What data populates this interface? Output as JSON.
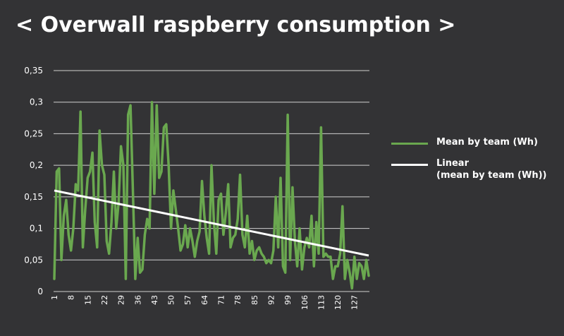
{
  "chart_data": {
    "type": "line",
    "title": "< Overwall raspberry consumption >",
    "xlabel": "",
    "ylabel": "",
    "ylim": [
      0,
      0.35
    ],
    "y_ticks": [
      "0",
      "0,05",
      "0,1",
      "0,15",
      "0,2",
      "0,25",
      "0,3",
      "0,35"
    ],
    "x_ticks": [
      "1",
      "8",
      "15",
      "22",
      "29",
      "36",
      "43",
      "50",
      "57",
      "64",
      "71",
      "78",
      "85",
      "92",
      "99",
      "106",
      "113",
      "120",
      "127"
    ],
    "xlim": [
      1,
      133
    ],
    "grid": "horizontal",
    "legend_position": "right",
    "series": [
      {
        "name": "Mean by team (Wh)",
        "color": "#6aa84f",
        "x": [
          1,
          2,
          3,
          4,
          5,
          6,
          7,
          8,
          9,
          10,
          11,
          12,
          13,
          14,
          15,
          16,
          17,
          18,
          19,
          20,
          21,
          22,
          23,
          24,
          25,
          26,
          27,
          28,
          29,
          30,
          31,
          32,
          33,
          34,
          35,
          36,
          37,
          38,
          39,
          40,
          41,
          42,
          43,
          44,
          45,
          46,
          47,
          48,
          49,
          50,
          51,
          52,
          53,
          54,
          55,
          56,
          57,
          58,
          59,
          60,
          61,
          62,
          63,
          64,
          65,
          66,
          67,
          68,
          69,
          70,
          71,
          72,
          73,
          74,
          75,
          76,
          77,
          78,
          79,
          80,
          81,
          82,
          83,
          84,
          85,
          86,
          87,
          88,
          89,
          90,
          91,
          92,
          93,
          94,
          95,
          96,
          97,
          98,
          99,
          100,
          101,
          102,
          103,
          104,
          105,
          106,
          107,
          108,
          109,
          110,
          111,
          112,
          113,
          114,
          115,
          116,
          117,
          118,
          119,
          120,
          121,
          122,
          123,
          124,
          125,
          126,
          127,
          128,
          129,
          130,
          131,
          132,
          133
        ],
        "values": [
          0.02,
          0.19,
          0.195,
          0.05,
          0.12,
          0.145,
          0.09,
          0.065,
          0.1,
          0.17,
          0.16,
          0.285,
          0.07,
          0.13,
          0.18,
          0.19,
          0.22,
          0.11,
          0.07,
          0.255,
          0.2,
          0.185,
          0.08,
          0.06,
          0.11,
          0.19,
          0.1,
          0.14,
          0.23,
          0.2,
          0.02,
          0.28,
          0.295,
          0.16,
          0.02,
          0.085,
          0.03,
          0.035,
          0.09,
          0.115,
          0.1,
          0.3,
          0.155,
          0.295,
          0.18,
          0.19,
          0.26,
          0.265,
          0.2,
          0.1,
          0.16,
          0.13,
          0.1,
          0.065,
          0.075,
          0.105,
          0.07,
          0.1,
          0.08,
          0.055,
          0.08,
          0.095,
          0.175,
          0.12,
          0.085,
          0.06,
          0.2,
          0.11,
          0.06,
          0.145,
          0.155,
          0.09,
          0.125,
          0.17,
          0.07,
          0.085,
          0.09,
          0.115,
          0.185,
          0.09,
          0.07,
          0.12,
          0.06,
          0.08,
          0.05,
          0.065,
          0.07,
          0.06,
          0.055,
          0.045,
          0.05,
          0.045,
          0.065,
          0.15,
          0.07,
          0.18,
          0.04,
          0.03,
          0.28,
          0.05,
          0.165,
          0.08,
          0.04,
          0.1,
          0.035,
          0.07,
          0.085,
          0.07,
          0.12,
          0.04,
          0.11,
          0.06,
          0.26,
          0.055,
          0.06,
          0.055,
          0.055,
          0.02,
          0.04,
          0.04,
          0.06,
          0.135,
          0.02,
          0.05,
          0.03,
          0.005,
          0.055,
          0.02,
          0.045,
          0.04,
          0.02,
          0.05,
          0.025
        ]
      },
      {
        "name": "Linear\n(mean by team (Wh))",
        "color": "#ffffff",
        "type": "trendline",
        "x": [
          1,
          133
        ],
        "values": [
          0.16,
          0.057
        ]
      }
    ]
  }
}
